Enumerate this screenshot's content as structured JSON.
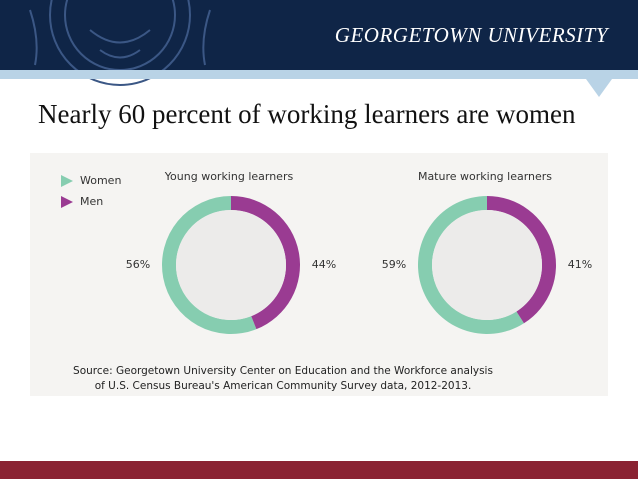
{
  "header": {
    "brand": "GEORGETOWN UNIVERSITY"
  },
  "title": "Nearly 60 percent of working learners are women",
  "source": [
    "Source: Georgetown University Center on Education and the Workforce analysis",
    "of U.S. Census Bureau's American Community Survey data, 2012-2013."
  ],
  "chart_data": [
    {
      "type": "pie",
      "title": "Young working learners",
      "categories": [
        "Women",
        "Men"
      ],
      "values": [
        56,
        44
      ],
      "value_labels": [
        "56%",
        "44%"
      ],
      "colors": [
        "#86cdb0",
        "#9a3b92"
      ],
      "donut": true,
      "legend": "top-left"
    },
    {
      "type": "pie",
      "title": "Mature working learners",
      "categories": [
        "Women",
        "Men"
      ],
      "values": [
        59,
        41
      ],
      "value_labels": [
        "59%",
        "41%"
      ],
      "colors": [
        "#86cdb0",
        "#9a3b92"
      ],
      "donut": true
    }
  ]
}
